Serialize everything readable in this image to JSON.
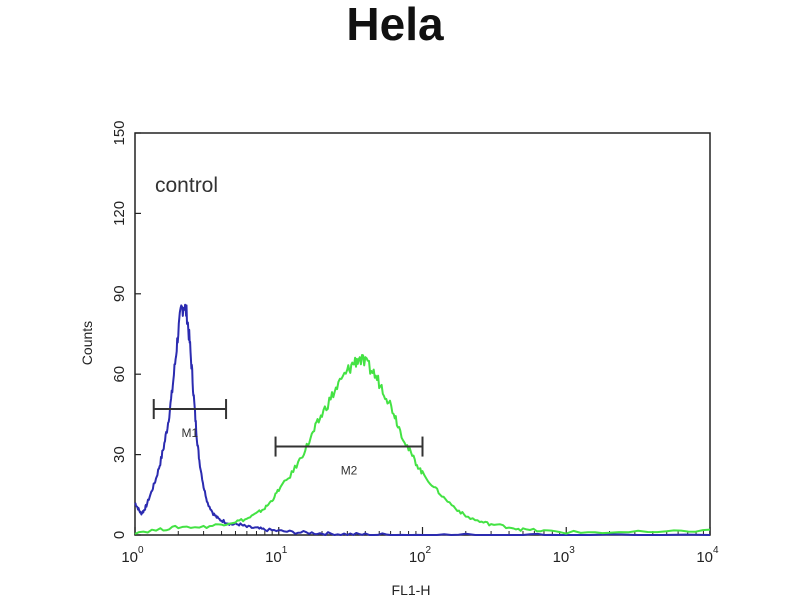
{
  "chart_data": {
    "type": "line",
    "title": "Hela",
    "xlabel": "FL1-H",
    "ylabel": "Counts",
    "xscale": "log",
    "xlim": [
      1,
      10000
    ],
    "ylim": [
      0,
      150
    ],
    "grid": false,
    "annotation": "control",
    "x_ticks": [
      {
        "value": 1,
        "base": "10",
        "exp": "0"
      },
      {
        "value": 10,
        "base": "10",
        "exp": "1"
      },
      {
        "value": 100,
        "base": "10",
        "exp": "2"
      },
      {
        "value": 1000,
        "base": "10",
        "exp": "3"
      },
      {
        "value": 10000,
        "base": "10",
        "exp": "4"
      }
    ],
    "y_ticks": [
      "0",
      "30",
      "60",
      "90",
      "120",
      "150"
    ],
    "series": [
      {
        "color": "#2b2bb0",
        "x": [
          1.0,
          1.05,
          1.1,
          1.15,
          1.2,
          1.3,
          1.4,
          1.5,
          1.6,
          1.7,
          1.8,
          1.9,
          2.0,
          2.1,
          2.2,
          2.3,
          2.4,
          2.5,
          2.6,
          2.7,
          2.8,
          3.0,
          3.2,
          3.5,
          3.8,
          4.2,
          4.7,
          5.3,
          6.0,
          7.0,
          8.0,
          10,
          13,
          17,
          22,
          30,
          40,
          60,
          100,
          200,
          500,
          1000,
          10000
        ],
        "y": [
          12,
          10,
          8,
          9,
          11,
          16,
          21,
          27,
          34,
          42,
          52,
          64,
          76,
          84,
          86,
          82,
          72,
          60,
          47,
          36,
          28,
          18,
          12,
          8,
          6,
          5,
          4,
          4,
          3,
          2.5,
          2,
          1.5,
          1,
          0.8,
          0.5,
          0.3,
          0.2,
          0.1,
          0,
          0,
          0,
          0,
          0
        ]
      },
      {
        "color": "#44e244",
        "x": [
          1.0,
          1.5,
          2.0,
          3.0,
          4.0,
          5.0,
          6.0,
          7.0,
          8.0,
          9.0,
          10,
          12,
          14,
          16,
          18,
          20,
          23,
          26,
          30,
          33,
          36,
          40,
          45,
          50,
          56,
          63,
          70,
          80,
          90,
          100,
          120,
          140,
          170,
          200,
          250,
          300,
          400,
          500,
          700,
          1000,
          2000,
          5000,
          10000
        ],
        "y": [
          1,
          2,
          3,
          3,
          4,
          5,
          6,
          8,
          10,
          13,
          17,
          22,
          28,
          34,
          40,
          45,
          51,
          56,
          61,
          64,
          66,
          64,
          61,
          57,
          52,
          46,
          39,
          32,
          27,
          23,
          18,
          14,
          10,
          7,
          5,
          4,
          3,
          2,
          1.5,
          1,
          1,
          1,
          2
        ]
      }
    ],
    "markers": [
      {
        "label": "M1",
        "start": 1.35,
        "end": 4.3,
        "y": 47
      },
      {
        "label": "M2",
        "start": 9.5,
        "end": 100,
        "y": 33
      }
    ]
  }
}
